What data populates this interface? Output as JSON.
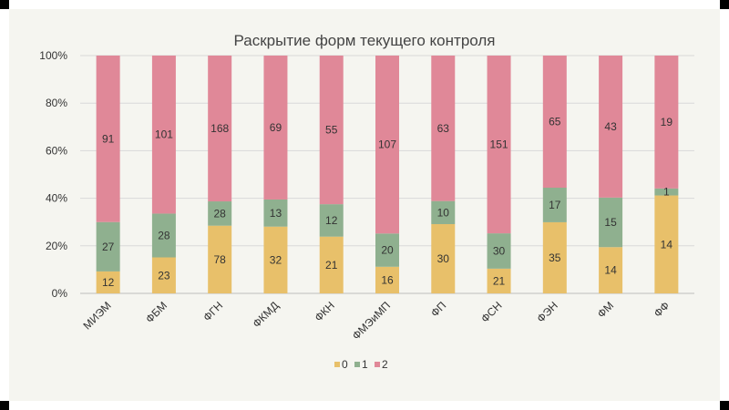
{
  "chart_data": {
    "type": "bar",
    "stacked": "percent",
    "title": "Раскрытие форм текущего контроля",
    "categories": [
      "МИЭМ",
      "ФБМ",
      "ФГН",
      "ФКМД",
      "ФКН",
      "ФМЭиМП",
      "ФП",
      "ФСН",
      "ФЭН",
      "ФМ",
      "ФФ"
    ],
    "series": [
      {
        "name": "0",
        "color": "#e8c06a",
        "values": [
          12,
          23,
          78,
          32,
          21,
          16,
          30,
          21,
          35,
          14,
          14
        ]
      },
      {
        "name": "1",
        "color": "#8fb08f",
        "values": [
          27,
          28,
          28,
          13,
          12,
          20,
          10,
          30,
          17,
          15,
          1
        ]
      },
      {
        "name": "2",
        "color": "#e08898",
        "values": [
          91,
          101,
          168,
          69,
          55,
          107,
          63,
          151,
          65,
          43,
          19
        ]
      }
    ],
    "y_ticks": [
      "0%",
      "20%",
      "40%",
      "60%",
      "80%",
      "100%"
    ],
    "ylim": [
      0,
      100
    ],
    "grid": true,
    "legend_position": "bottom"
  }
}
